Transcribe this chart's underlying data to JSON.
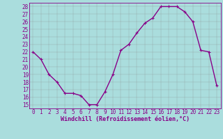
{
  "x": [
    0,
    1,
    2,
    3,
    4,
    5,
    6,
    7,
    8,
    9,
    10,
    11,
    12,
    13,
    14,
    15,
    16,
    17,
    18,
    19,
    20,
    21,
    22,
    23
  ],
  "y": [
    22,
    21,
    19,
    18,
    16.5,
    16.5,
    16.2,
    15,
    15,
    16.7,
    19,
    22.2,
    23,
    24.5,
    25.8,
    26.5,
    28,
    28,
    28,
    27.3,
    26,
    22.2,
    22,
    17.5
  ],
  "line_color": "#880088",
  "marker": "+",
  "marker_size": 3,
  "bg_color": "#aadddd",
  "grid_color": "#888888",
  "xlabel": "Windchill (Refroidissement éolien,°C)",
  "xlim": [
    -0.5,
    23.5
  ],
  "ylim": [
    14.5,
    28.5
  ],
  "yticks": [
    15,
    16,
    17,
    18,
    19,
    20,
    21,
    22,
    23,
    24,
    25,
    26,
    27,
    28
  ],
  "xticks": [
    0,
    1,
    2,
    3,
    4,
    5,
    6,
    7,
    8,
    9,
    10,
    11,
    12,
    13,
    14,
    15,
    16,
    17,
    18,
    19,
    20,
    21,
    22,
    23
  ],
  "font_size": 5.5,
  "xlabel_font_size": 6.0,
  "line_width": 1.0,
  "marker_edge_width": 0.8
}
